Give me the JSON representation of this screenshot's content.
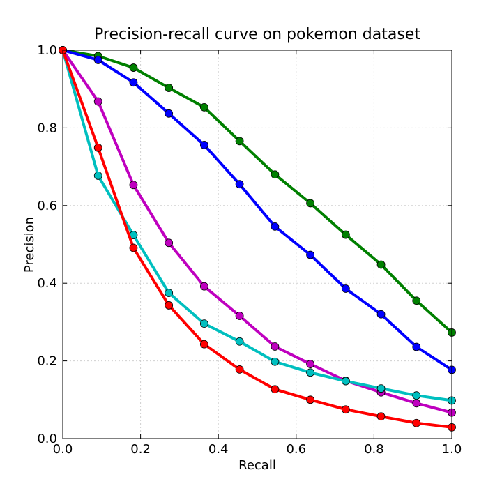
{
  "chart_data": {
    "type": "line",
    "title": "Precision-recall curve on pokemon dataset",
    "xlabel": "Recall",
    "ylabel": "Precision",
    "xlim": [
      0.0,
      1.0
    ],
    "ylim": [
      0.0,
      1.0
    ],
    "xticks": [
      "0.0",
      "0.2",
      "0.4",
      "0.6",
      "0.8",
      "1.0"
    ],
    "yticks": [
      "0.0",
      "0.2",
      "0.4",
      "0.6",
      "0.8",
      "1.0"
    ],
    "grid": true,
    "legend": false,
    "x": [
      0.0,
      0.0909,
      0.1818,
      0.2727,
      0.3636,
      0.4545,
      0.5455,
      0.6364,
      0.7273,
      0.8182,
      0.9091,
      1.0
    ],
    "series": [
      {
        "name": "green",
        "color": "#008000",
        "values": [
          1.0,
          0.985,
          0.955,
          0.903,
          0.853,
          0.766,
          0.68,
          0.606,
          0.525,
          0.448,
          0.355,
          0.273
        ]
      },
      {
        "name": "blue",
        "color": "#0000ff",
        "values": [
          1.0,
          0.975,
          0.917,
          0.837,
          0.756,
          0.655,
          0.546,
          0.473,
          0.386,
          0.32,
          0.236,
          0.177
        ]
      },
      {
        "name": "magenta",
        "color": "#bf00bf",
        "values": [
          1.0,
          0.868,
          0.653,
          0.504,
          0.392,
          0.316,
          0.237,
          0.192,
          0.149,
          0.119,
          0.091,
          0.067
        ]
      },
      {
        "name": "cyan",
        "color": "#00bfbf",
        "values": [
          1.0,
          0.677,
          0.524,
          0.375,
          0.296,
          0.25,
          0.198,
          0.17,
          0.148,
          0.129,
          0.111,
          0.098
        ]
      },
      {
        "name": "red",
        "color": "#ff0000",
        "values": [
          1.0,
          0.749,
          0.491,
          0.343,
          0.243,
          0.178,
          0.127,
          0.1,
          0.075,
          0.057,
          0.04,
          0.029
        ]
      }
    ]
  }
}
